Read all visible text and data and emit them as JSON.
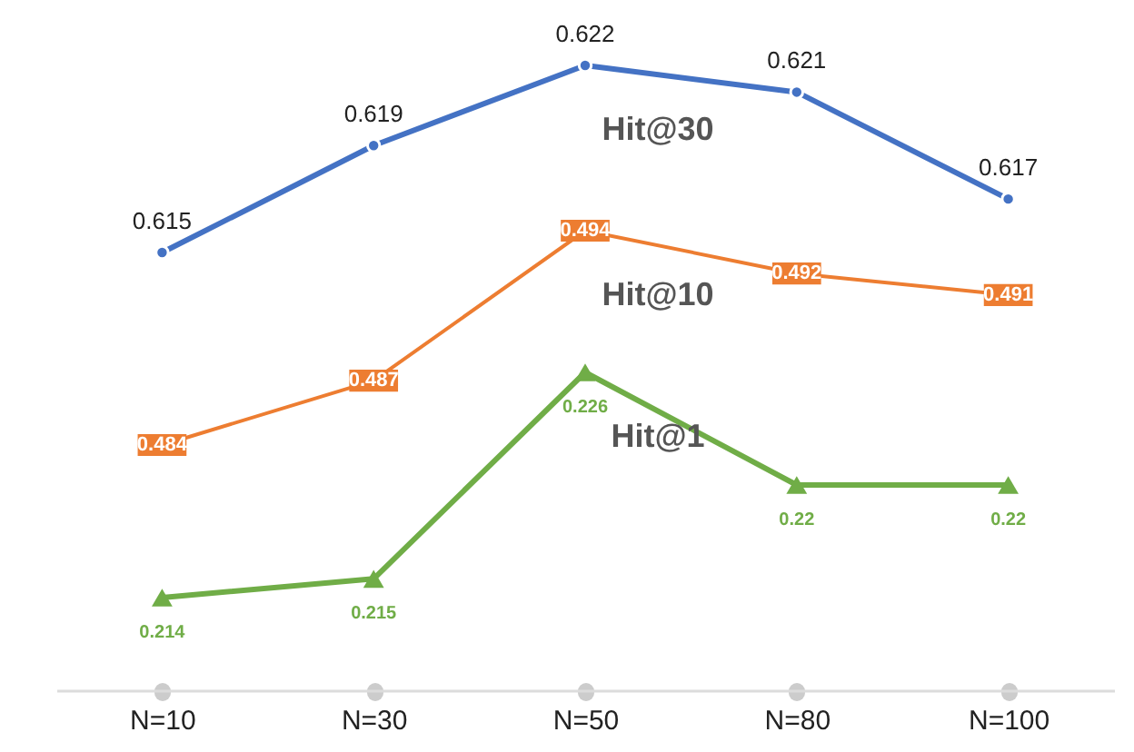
{
  "chart_data": [
    {
      "type": "line",
      "categories": [
        "N=10",
        "N=30",
        "N=50",
        "N=80",
        "N=100"
      ],
      "series": [
        {
          "name": "Hit@30",
          "color": "#4472c4",
          "marker": "circle",
          "values": [
            0.615,
            0.619,
            0.622,
            0.621,
            0.617
          ]
        },
        {
          "name": "Hit@10",
          "color": "#ed7d31",
          "axis": "y2",
          "values": [
            0.484,
            0.487,
            0.494,
            0.492,
            0.491
          ]
        }
      ],
      "tick_labels": "x",
      "data_labels": true
    },
    {
      "type": "line",
      "categories": [
        null,
        null,
        null,
        null,
        null
      ],
      "series": [
        {
          "name": "Hit@1",
          "color": "#70ad47",
          "marker": "triangle",
          "values": [
            0.214,
            0.215,
            0.226,
            0.22,
            0.22
          ]
        }
      ],
      "data_labels": true
    }
  ]
}
